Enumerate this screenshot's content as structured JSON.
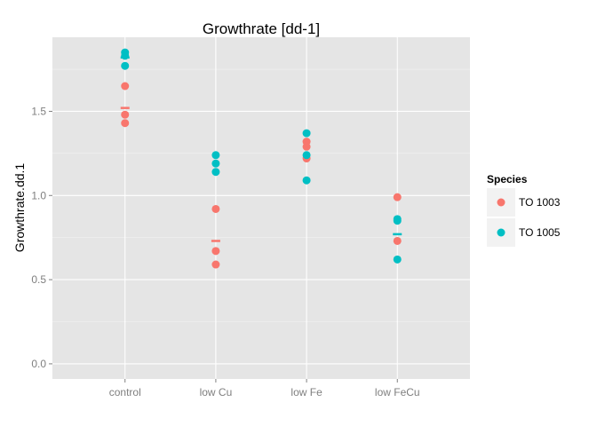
{
  "chart_data": {
    "type": "scatter",
    "title": "Growthrate [dd-1]",
    "xlabel": "",
    "ylabel": "Growthrate.dd.1",
    "categories": [
      "control",
      "low Cu",
      "low Fe",
      "low FeCu"
    ],
    "ylim": [
      -0.09,
      1.94
    ],
    "yticks": [
      0.0,
      0.5,
      1.0,
      1.5
    ],
    "ytick_labels": [
      "0.0",
      "0.5",
      "1.0",
      "1.5"
    ],
    "grid": true,
    "legend": {
      "title": "Species",
      "placement": "right"
    },
    "series": [
      {
        "name": "TO 1003",
        "color": "#F8766D",
        "points": {
          "control": [
            1.65,
            1.48,
            1.43
          ],
          "low Cu": [
            0.92,
            0.67,
            0.59
          ],
          "low Fe": [
            1.32,
            1.29,
            1.22
          ],
          "low FeCu": [
            0.99,
            0.73
          ]
        },
        "means": {
          "control": 1.52,
          "low Cu": 0.73
        }
      },
      {
        "name": "TO 1005",
        "color": "#00BFC4",
        "points": {
          "control": [
            1.85,
            1.83,
            1.77
          ],
          "low Cu": [
            1.24,
            1.19,
            1.14
          ],
          "low Fe": [
            1.37,
            1.24,
            1.09
          ],
          "low FeCu": [
            0.86,
            0.85,
            0.62
          ]
        },
        "means": {
          "control": 1.82,
          "low FeCu": 0.77
        }
      }
    ]
  },
  "colors": {
    "panel_background": "#E5E5E5",
    "grid_major": "#FFFFFF",
    "legend_key_background": "#F2F2F2"
  }
}
